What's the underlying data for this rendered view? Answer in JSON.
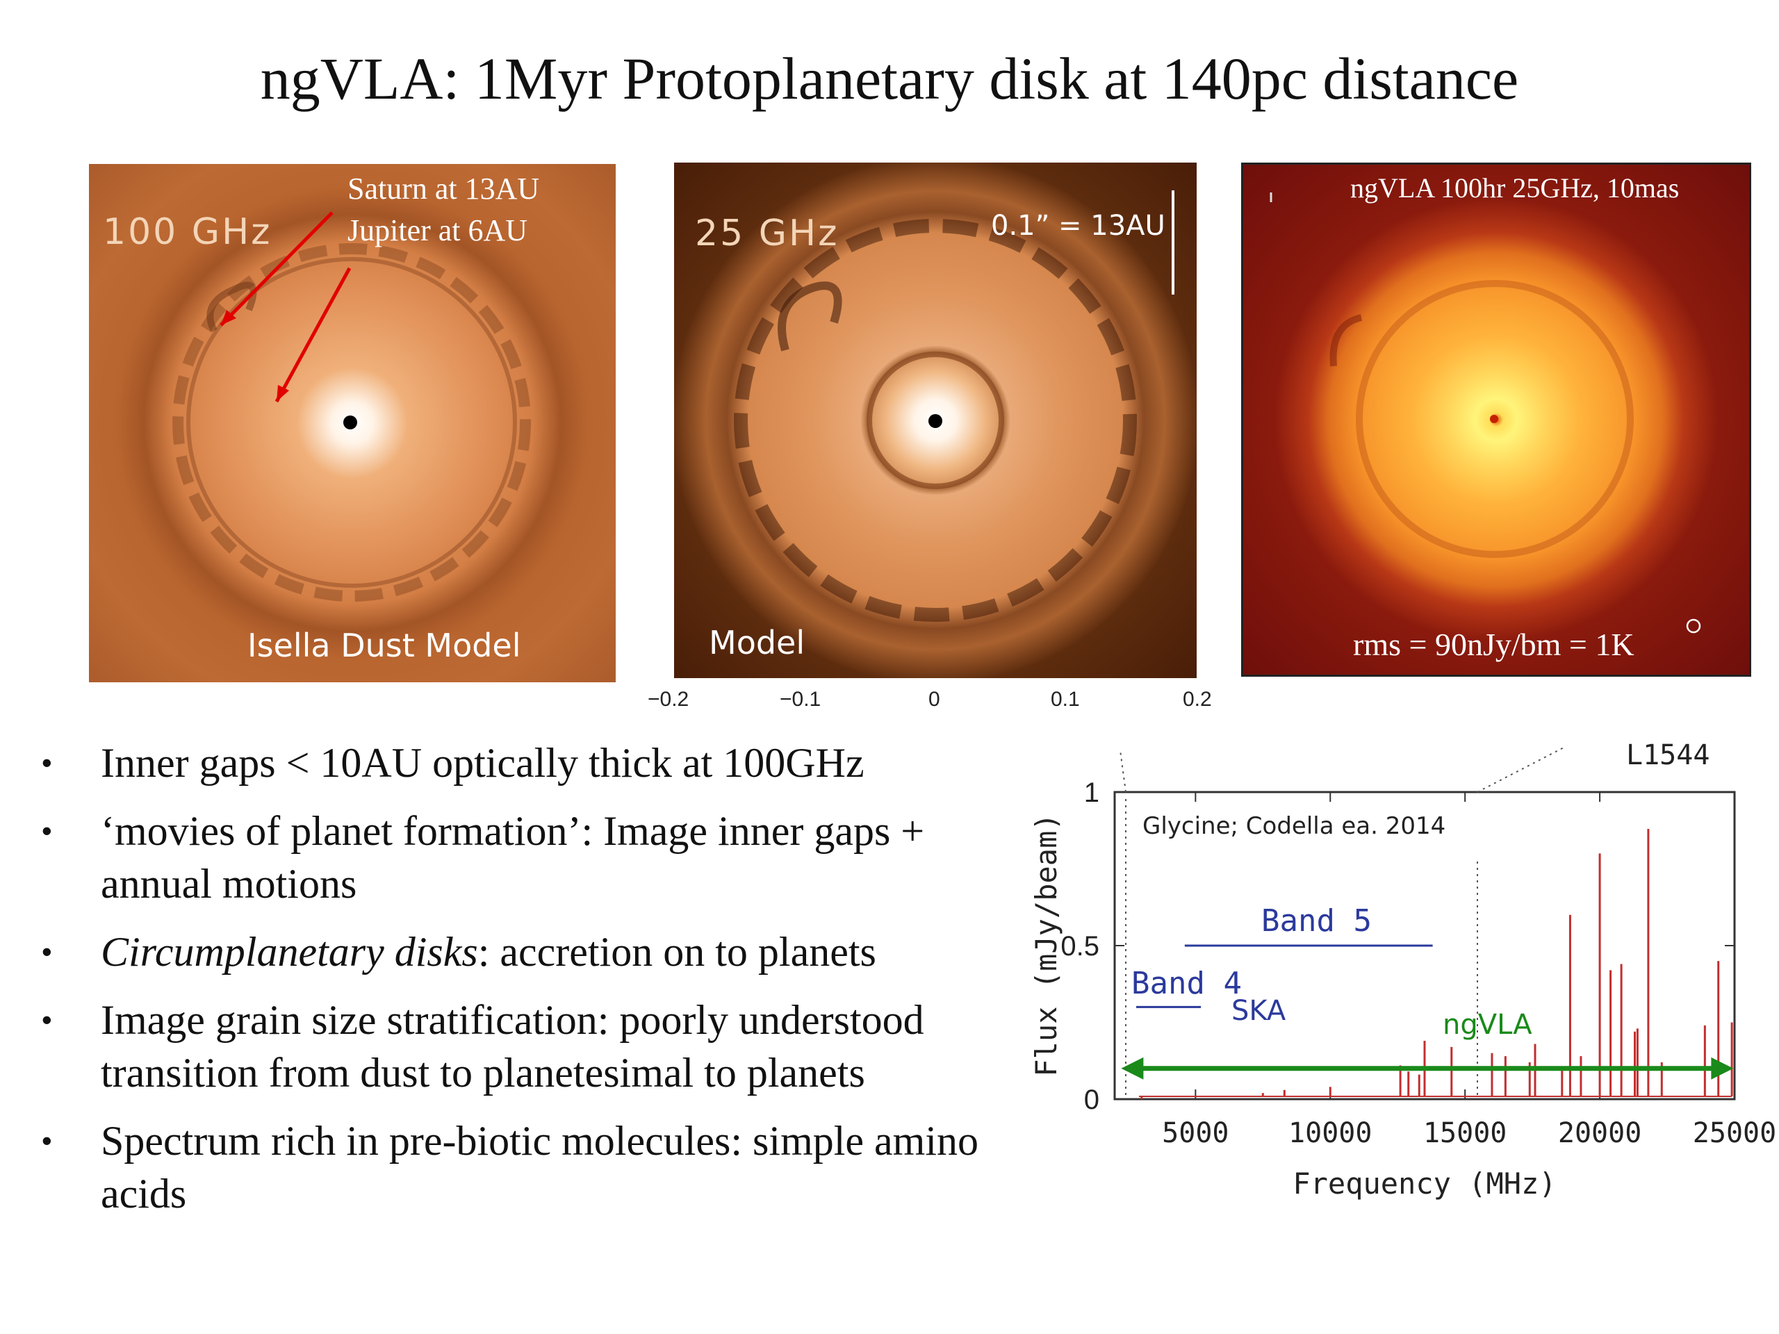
{
  "title": "ngVLA: 1Myr Protoplanetary disk at 140pc distance",
  "panels": [
    {
      "freq_label": "100 GHz",
      "annotation_line1": "Saturn at 13AU",
      "annotation_line2": "Jupiter  at 6AU",
      "caption": "Isella Dust Model"
    },
    {
      "freq_label": "25 GHz",
      "scale_label": "0.1” = 13AU",
      "caption": "Model"
    },
    {
      "header": "ngVLA 100hr 25GHz, 10mas",
      "caption": "rms = 90nJy/bm = 1K"
    }
  ],
  "x_ticks": [
    "−0.2",
    "−0.1",
    "0",
    "0.1",
    "0.2"
  ],
  "bullets": [
    {
      "text": "Inner gaps <  10AU optically thick at 100GHz"
    },
    {
      "text": "‘movies of planet formation’: Image inner gaps + annual motions"
    },
    {
      "italic": "Circumplanetary disks",
      "text": ": accretion on to planets"
    },
    {
      "text": "Image grain size stratification: poorly understood transition from dust to planetesimal to planets"
    },
    {
      "text": "Spectrum rich in pre-biotic molecules: simple amino acids"
    }
  ],
  "chart_data": {
    "type": "line",
    "title": "L1544",
    "xlabel": "Frequency (MHz)",
    "ylabel": "Flux (mJy/beam)",
    "xlim": [
      2000,
      25000
    ],
    "ylim": [
      0,
      1
    ],
    "x_ticks": [
      5000,
      10000,
      15000,
      20000,
      25000
    ],
    "y_ticks": [
      0,
      0.5,
      1
    ],
    "annotation": "Glycine; Codella ea. 2014",
    "band_labels": [
      "Band 5",
      "Band 4",
      "SKA",
      "ngVLA"
    ],
    "bands": [
      {
        "name": "Band 5",
        "x": [
          4600,
          13800
        ],
        "y": 0.5,
        "color": "#2b3a9c"
      },
      {
        "name": "Band 4",
        "x": [
          2800,
          5200
        ],
        "y": 0.3,
        "color": "#2b3a9c"
      },
      {
        "name": "ngVLA",
        "x": [
          2500,
          24700
        ],
        "y": 0.1,
        "color": "#1a8a1a"
      }
    ],
    "series": [
      {
        "color": "#c22f2f",
        "lines": [
          [
            3000,
            0.0
          ],
          [
            5200,
            0.01
          ],
          [
            6500,
            0.01
          ],
          [
            7500,
            0.02
          ],
          [
            8300,
            0.03
          ],
          [
            10000,
            0.04
          ],
          [
            12600,
            0.11
          ],
          [
            12900,
            0.09
          ],
          [
            13300,
            0.08
          ],
          [
            13500,
            0.19
          ],
          [
            14500,
            0.17
          ],
          [
            16000,
            0.15
          ],
          [
            16500,
            0.14
          ],
          [
            17400,
            0.12
          ],
          [
            17600,
            0.18
          ],
          [
            18600,
            0.1
          ],
          [
            18900,
            0.6
          ],
          [
            19300,
            0.14
          ],
          [
            20000,
            0.8
          ],
          [
            20400,
            0.42
          ],
          [
            20800,
            0.44
          ],
          [
            21300,
            0.22
          ],
          [
            21400,
            0.23
          ],
          [
            21800,
            0.88
          ],
          [
            22300,
            0.12
          ],
          [
            23900,
            0.24
          ],
          [
            24400,
            0.45
          ],
          [
            24900,
            0.25
          ]
        ]
      }
    ],
    "colors": {
      "spectrum": "#c22f2f",
      "band": "#2b3a9c",
      "ngvla": "#1a8a1a"
    }
  }
}
